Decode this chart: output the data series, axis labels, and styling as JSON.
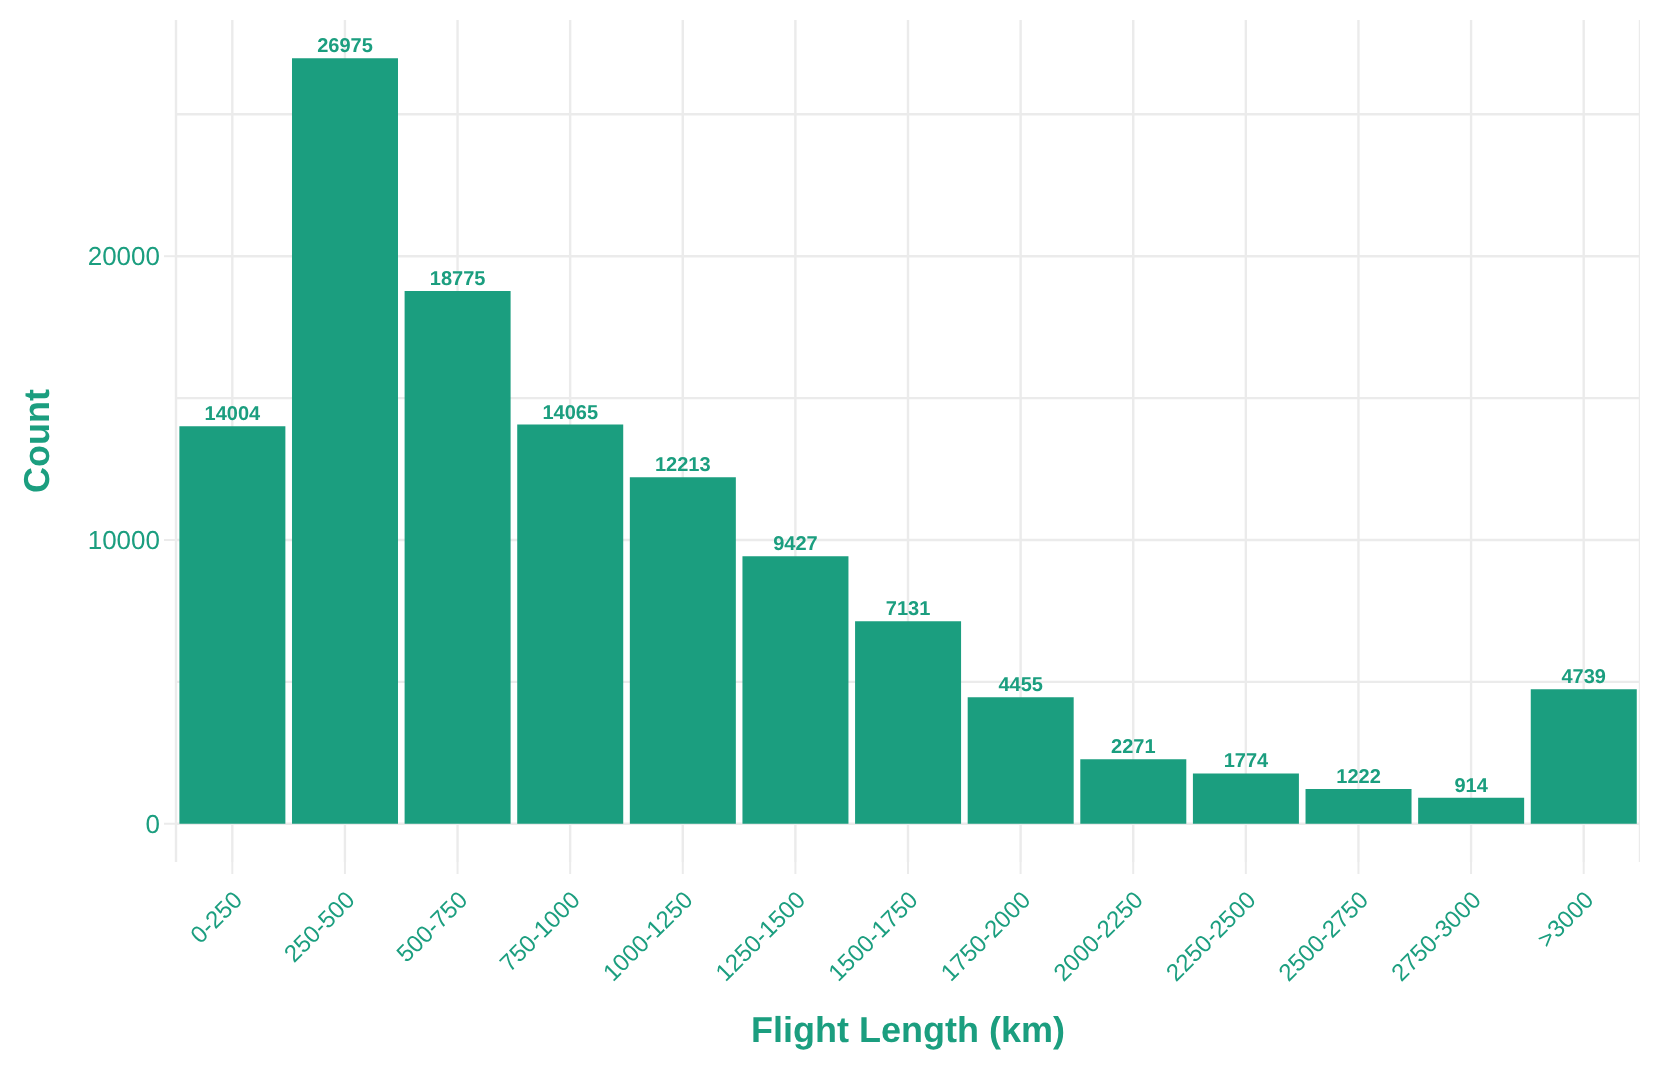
{
  "chart_data": {
    "type": "bar",
    "xlabel": "Flight Length (km)",
    "ylabel": "Count",
    "categories": [
      "0-250",
      "250-500",
      "500-750",
      "750-1000",
      "1000-1250",
      "1250-1500",
      "1500-1750",
      "1750-2000",
      "2000-2250",
      "2250-2500",
      "2500-2750",
      "2750-3000",
      ">3000"
    ],
    "values": [
      14004,
      26975,
      18775,
      14065,
      12213,
      9427,
      7131,
      4455,
      2271,
      1774,
      1222,
      914,
      4739
    ],
    "color": "#1b9e7f",
    "ylim": [
      -1349,
      28324
    ],
    "yticks": [
      0,
      10000,
      20000
    ],
    "grid": true,
    "data_labels": true
  }
}
